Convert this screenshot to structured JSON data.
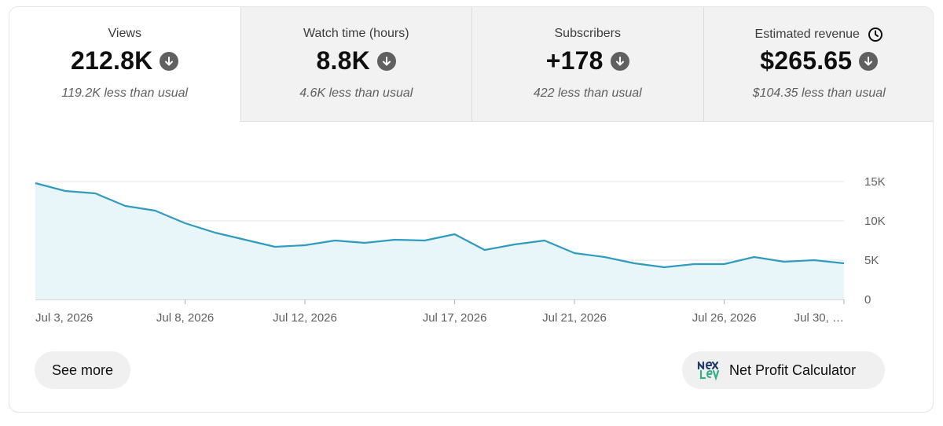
{
  "tabs": [
    {
      "label": "Views",
      "value": "212.8K",
      "sub": "119.2K less than usual",
      "active": true
    },
    {
      "label": "Watch time (hours)",
      "value": "8.8K",
      "sub": "4.6K less than usual",
      "active": false
    },
    {
      "label": "Subscribers",
      "value": "+178",
      "sub": "422 less than usual",
      "active": false
    },
    {
      "label": "Estimated revenue",
      "value": "$265.65",
      "sub": "$104.35 less than usual",
      "active": false
    }
  ],
  "icons": {
    "trend": "arrow-down-circle-icon",
    "info": "clock-icon",
    "logo": "nexlev-logo-icon"
  },
  "colors": {
    "line": "#2f9cbf",
    "area": "#e8f6fa",
    "tab_inactive": "#f2f2f2"
  },
  "chart_data": {
    "type": "area",
    "series": [
      {
        "values": [
          14800,
          13800,
          13500,
          11900,
          11300,
          9700,
          8500,
          7600,
          6700,
          6900,
          7500,
          7200,
          7600,
          7500,
          8300,
          6300,
          7000,
          7500,
          5900,
          5400,
          4600,
          4100,
          4500,
          4500,
          5400,
          4800,
          5000,
          4600
        ]
      }
    ],
    "x_tick_labels": [
      "Jul 3, 2026",
      "Jul 8, 2026",
      "Jul 12, 2026",
      "Jul 17, 2026",
      "Jul 21, 2026",
      "Jul 26, 2026",
      "Jul 30, …"
    ],
    "x_tick_positions": [
      "Jul 3, 2026",
      "Jul 8, 2026",
      "Jul 12, 2026",
      "Jul 17, 2026",
      "Jul 21, 2026",
      "Jul 26, 2026",
      "Jul 30, 2026"
    ],
    "x_start": "Jul 3, 2026",
    "y_tick_labels": [
      "0",
      "5K",
      "10K",
      "15K"
    ],
    "y_ticks": [
      0,
      5000,
      10000,
      15000
    ],
    "ylim": [
      0,
      15000
    ],
    "grid": true,
    "y_axis_side": "right"
  },
  "buttons": {
    "see_more": "See more",
    "net_profit": "Net Profit Calculator"
  }
}
